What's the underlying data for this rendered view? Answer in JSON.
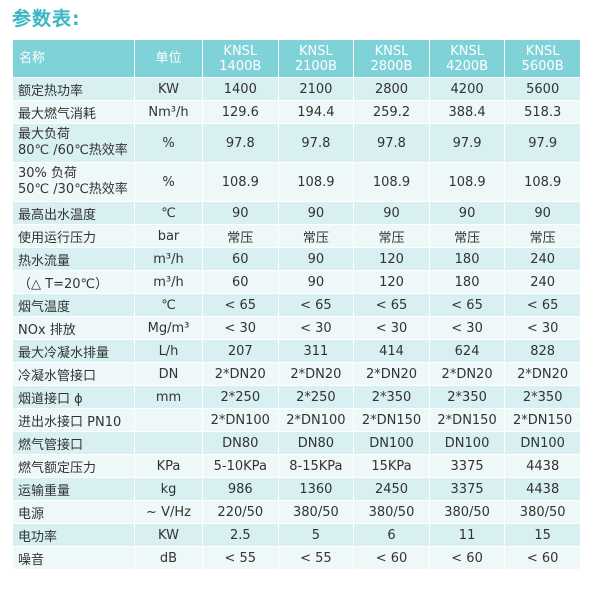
{
  "title": "参数表:",
  "header": {
    "name": "名称",
    "unit": "单位",
    "models": [
      {
        "line1": "KNSL",
        "line2": "1400B"
      },
      {
        "line1": "KNSL",
        "line2": "2100B"
      },
      {
        "line1": "KNSL",
        "line2": "2800B"
      },
      {
        "line1": "KNSL",
        "line2": "4200B"
      },
      {
        "line1": "KNSL",
        "line2": "5600B"
      }
    ]
  },
  "rows": [
    {
      "name": "额定热功率",
      "unit": "KW",
      "values": [
        "1400",
        "2100",
        "2800",
        "4200",
        "5600"
      ]
    },
    {
      "name": "最大燃气消耗",
      "unit": "Nm³/h",
      "values": [
        "129.6",
        "194.4",
        "259.2",
        "388.4",
        "518.3"
      ]
    },
    {
      "name": "最大负荷\n80℃ /60℃热效率",
      "unit": "%",
      "values": [
        "97.8",
        "97.8",
        "97.8",
        "97.9",
        "97.9"
      ]
    },
    {
      "name": "30% 负荷\n50℃ /30℃热效率",
      "unit": "%",
      "values": [
        "108.9",
        "108.9",
        "108.9",
        "108.9",
        "108.9"
      ]
    },
    {
      "name": "最高出水温度",
      "unit": "℃",
      "values": [
        "90",
        "90",
        "90",
        "90",
        "90"
      ]
    },
    {
      "name": "使用运行压力",
      "unit": "bar",
      "values": [
        "常压",
        "常压",
        "常压",
        "常压",
        "常压"
      ]
    },
    {
      "name": "热水流量",
      "unit": "m³/h",
      "values": [
        "60",
        "90",
        "120",
        "180",
        "240"
      ]
    },
    {
      "name": "（△ T=20℃）",
      "unit": "m³/h",
      "values": [
        "60",
        "90",
        "120",
        "180",
        "240"
      ]
    },
    {
      "name": "烟气温度",
      "unit": "℃",
      "values": [
        "< 65",
        "< 65",
        "< 65",
        "< 65",
        "< 65"
      ]
    },
    {
      "name": "NOx 排放",
      "unit": "Mg/m³",
      "values": [
        "< 30",
        "< 30",
        "< 30",
        "< 30",
        "< 30"
      ]
    },
    {
      "name": "最大冷凝水排量",
      "unit": "L/h",
      "values": [
        "207",
        "311",
        "414",
        "624",
        "828"
      ]
    },
    {
      "name": "冷凝水管接口",
      "unit": "DN",
      "values": [
        "2*DN20",
        "2*DN20",
        "2*DN20",
        "2*DN20",
        "2*DN20"
      ]
    },
    {
      "name": "烟道接口 ϕ",
      "unit": "mm",
      "values": [
        "2*250",
        "2*250",
        "2*350",
        "2*350",
        "2*350"
      ]
    },
    {
      "name": "进出水接口 PN10",
      "unit": "",
      "values": [
        "2*DN100",
        "2*DN100",
        "2*DN150",
        "2*DN150",
        "2*DN150"
      ]
    },
    {
      "name": "燃气管接口",
      "unit": "",
      "values": [
        "DN80",
        "DN80",
        "DN100",
        "DN100",
        "DN100"
      ]
    },
    {
      "name": "燃气额定压力",
      "unit": "KPa",
      "values": [
        "5-10KPa",
        "8-15KPa",
        "15KPa",
        "3375",
        "4438"
      ]
    },
    {
      "name": "运输重量",
      "unit": "kg",
      "values": [
        "986",
        "1360",
        "2450",
        "3375",
        "4438"
      ]
    },
    {
      "name": "电源",
      "unit": "~ V/Hz",
      "values": [
        "220/50",
        "380/50",
        "380/50",
        "380/50",
        "380/50"
      ]
    },
    {
      "name": "电功率",
      "unit": "KW",
      "values": [
        "2.5",
        "5",
        "6",
        "11",
        "15"
      ]
    },
    {
      "name": "噪音",
      "unit": "dB",
      "values": [
        "< 55",
        "< 55",
        "< 60",
        "< 60",
        "< 60"
      ]
    }
  ]
}
